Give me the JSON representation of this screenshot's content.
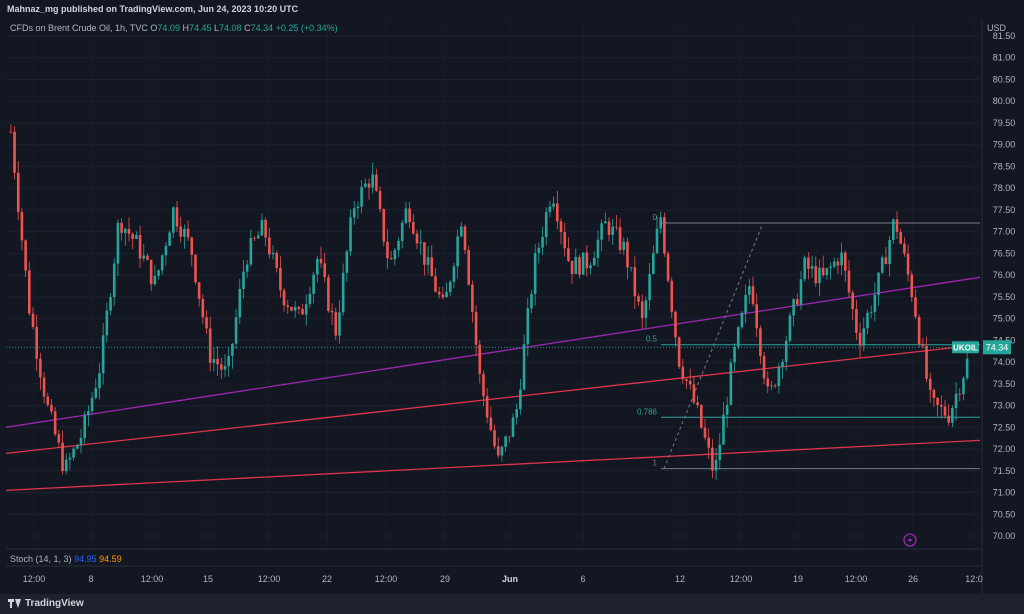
{
  "header": {
    "publish_line": "Mahnaz_mg published on TradingView.com, Jun 24, 2023 10:20 UTC"
  },
  "legend": {
    "symbol": "CFDs on Brent Crude Oil, 1h, TVC",
    "open_label": "O",
    "open": "74.09",
    "high_label": "H",
    "high": "74.45",
    "low_label": "L",
    "low": "74.08",
    "close_label": "C",
    "close": "74.34",
    "change": "+0.25 (+0.34%)"
  },
  "currency": "USD",
  "indicator": {
    "name": "Stoch (14, 1, 3)",
    "k_value": "94.95",
    "d_value": "94.59"
  },
  "footer": {
    "brand": "TradingView"
  },
  "colors": {
    "background": "#131722",
    "up": "#26a69a",
    "down": "#ef5350",
    "purple_line": "#9c27b0",
    "red_line": "#e0344c",
    "fib_teal": "#26a69a",
    "fib_gray": "#787b86"
  },
  "chart_data": {
    "type": "candlestick",
    "symbol_tag": "UKOIL",
    "last_price": 74.34,
    "y_ticks": [
      81.5,
      81.0,
      80.5,
      80.0,
      79.5,
      79.0,
      78.5,
      78.0,
      77.5,
      77.0,
      76.5,
      76.0,
      75.5,
      75.0,
      74.5,
      74.0,
      73.5,
      73.0,
      72.5,
      72.0,
      71.5,
      71.0,
      70.5,
      70.0
    ],
    "y_tick_labels": [
      "81.50",
      "81.00",
      "80.50",
      "80.00",
      "79.50",
      "79.00",
      "78.50",
      "78.00",
      "77.50",
      "77.00",
      "76.50",
      "76.00",
      "75.50",
      "75.00",
      "74.50",
      "74.00",
      "73.50",
      "73.00",
      "72.50",
      "72.00",
      "71.50",
      "71.00",
      "70.50",
      "70.00"
    ],
    "ylim": [
      69.8,
      81.8
    ],
    "x_tick_labels": [
      "12:00",
      "8",
      "12:00",
      "15",
      "12:00",
      "22",
      "12:00",
      "29",
      "Jun",
      "6",
      "12",
      "12:00",
      "19",
      "12:00",
      "26",
      "12:0"
    ],
    "fib_levels": [
      {
        "label": "0",
        "price": 77.2
      },
      {
        "label": "0.5",
        "price": 74.4
      },
      {
        "label": "0.786",
        "price": 72.73
      },
      {
        "label": "1",
        "price": 71.55
      }
    ],
    "trendlines": [
      {
        "color": "purple",
        "from_price": 72.5,
        "to_price": 75.95
      },
      {
        "color": "red",
        "from_price": 71.9,
        "to_price": 74.4
      },
      {
        "color": "red",
        "from_price": 71.05,
        "to_price": 72.2
      }
    ],
    "price_path": [
      79.3,
      75.3,
      73.0,
      71.5,
      72.4,
      74.0,
      77.3,
      76.7,
      75.8,
      77.5,
      76.6,
      74.2,
      73.7,
      76.4,
      77.1,
      75.6,
      75.0,
      76.4,
      74.7,
      77.6,
      78.3,
      76.2,
      77.6,
      76.3,
      75.2,
      77.4,
      73.6,
      71.7,
      72.8,
      76.2,
      78.0,
      76.2,
      76.3,
      77.2,
      76.6,
      74.9,
      77.4,
      74.1,
      72.9,
      71.4,
      74.0,
      75.9,
      73.1,
      74.6,
      76.2,
      75.9,
      76.5,
      74.5,
      75.7,
      77.3,
      75.5,
      73.0,
      72.8,
      74.0
    ]
  }
}
